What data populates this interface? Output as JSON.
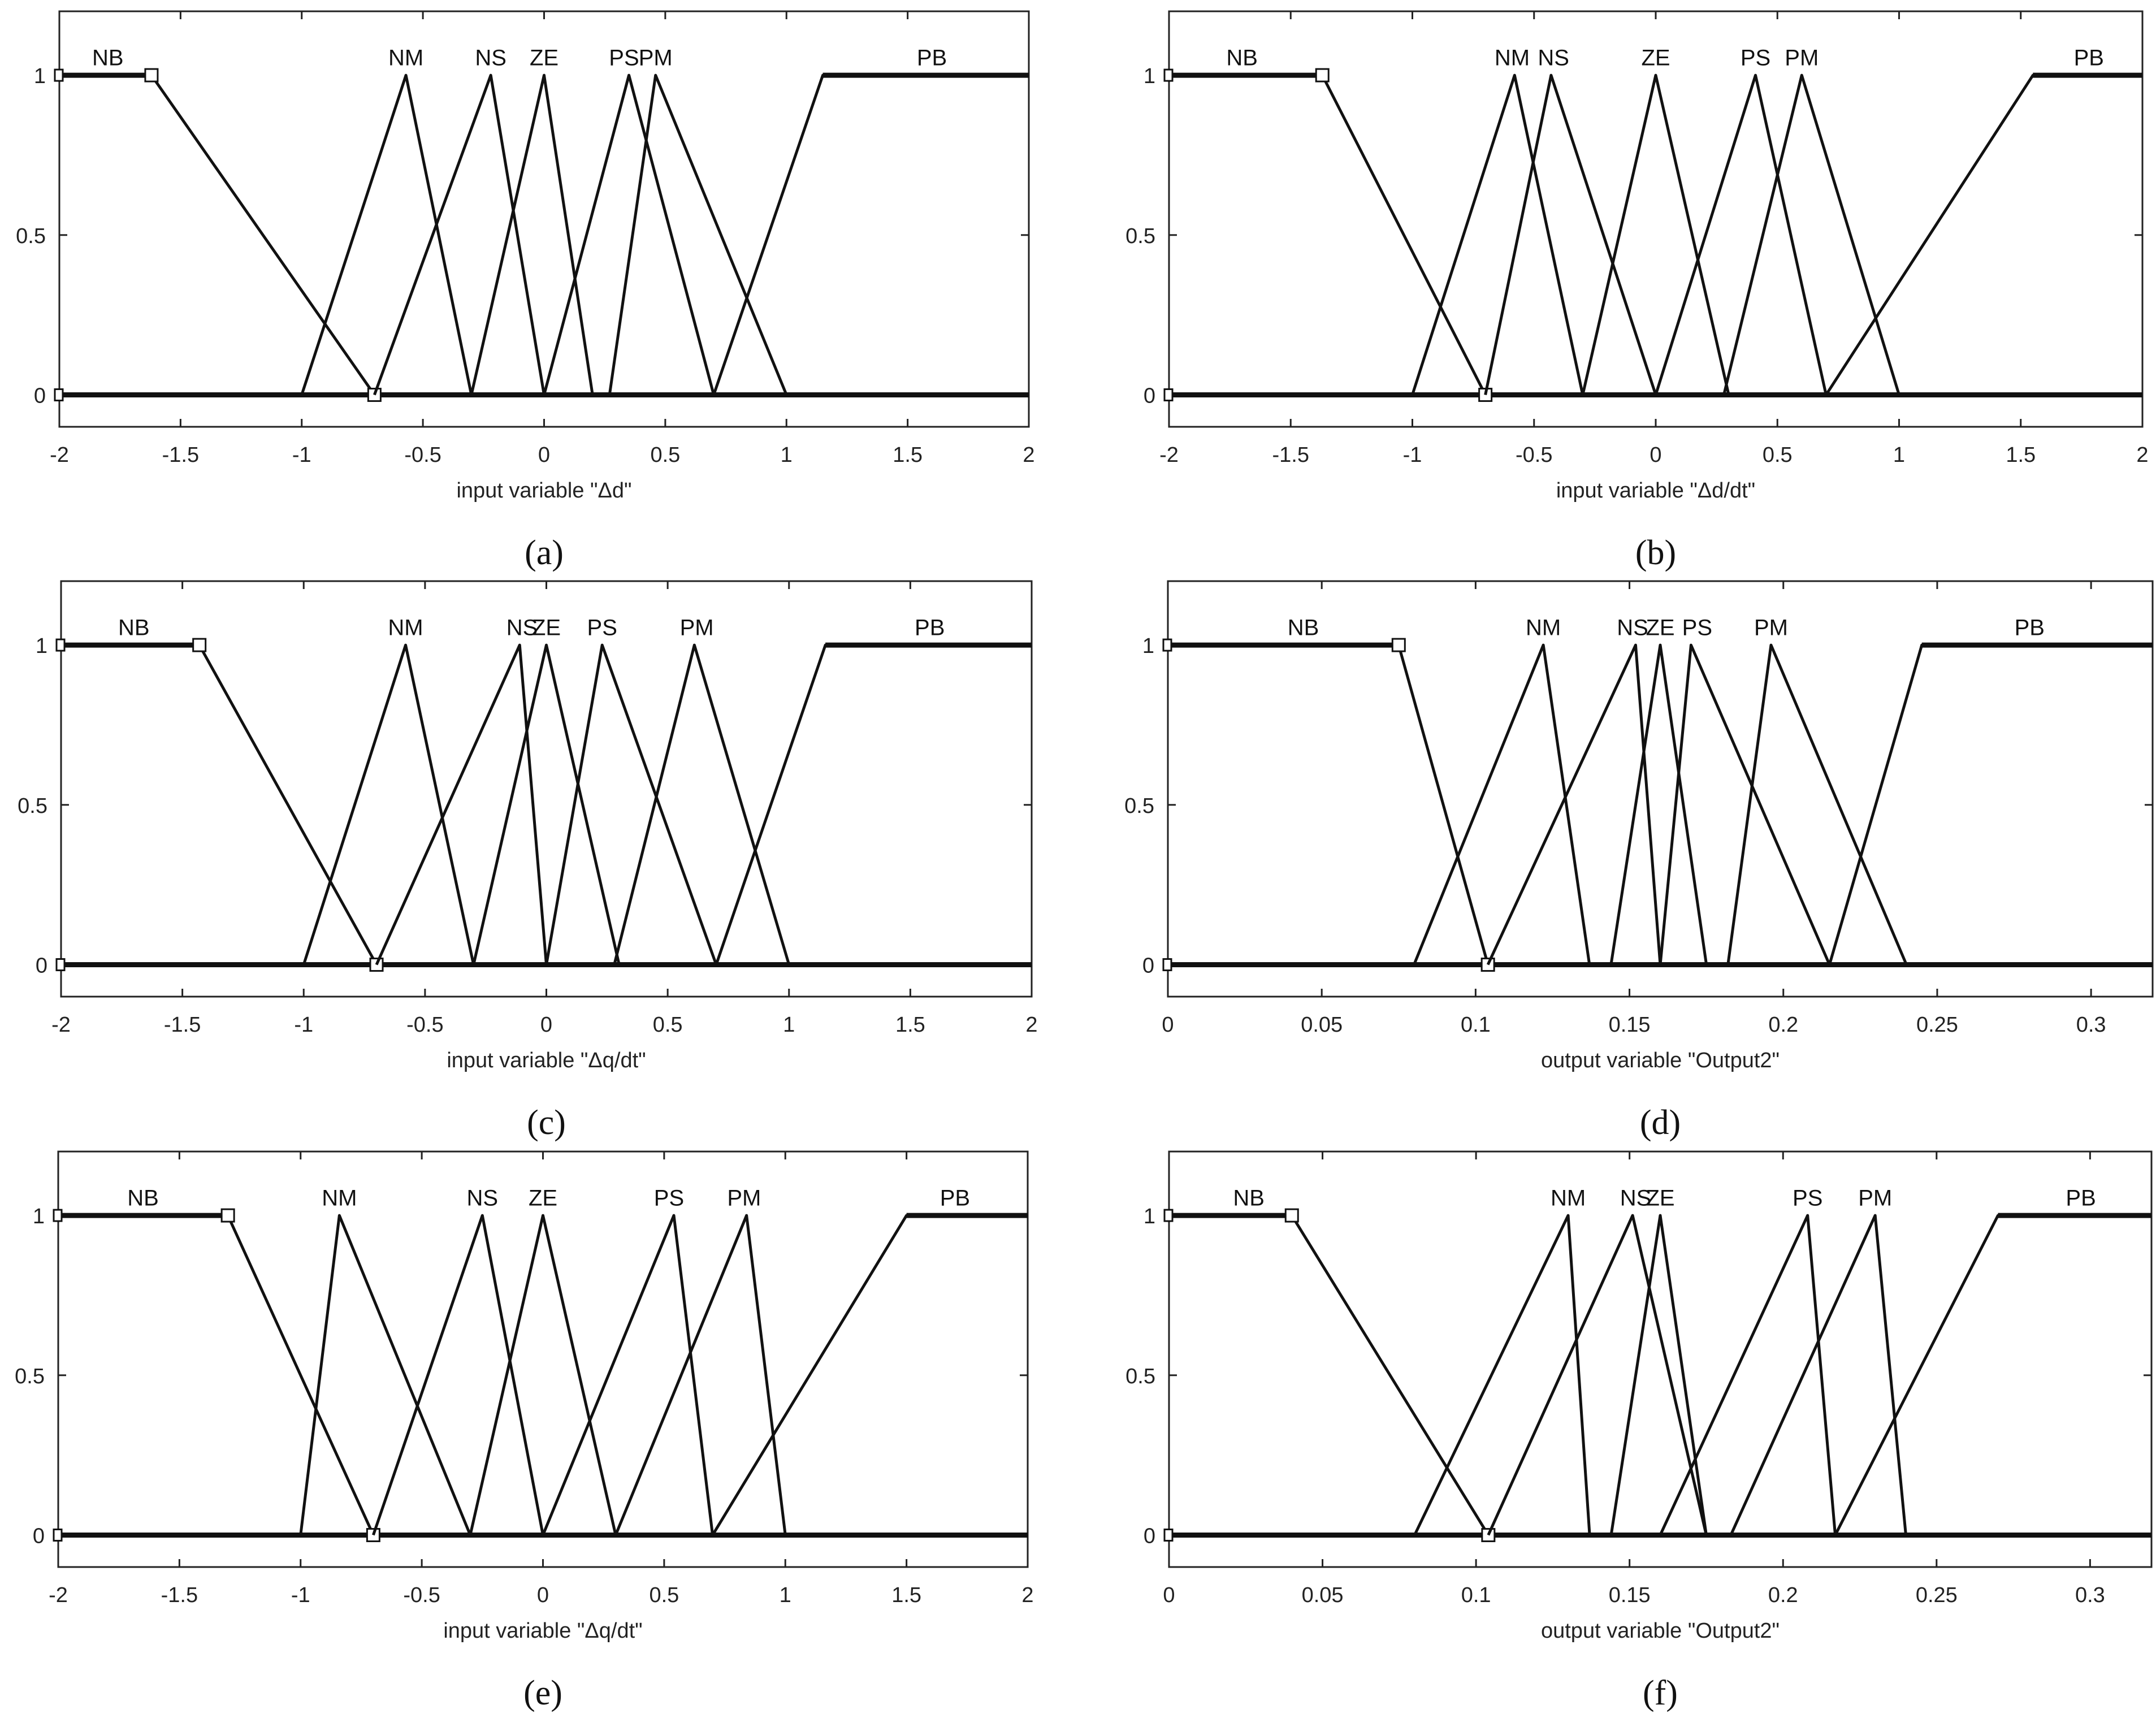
{
  "chart_data": [
    {
      "type": "line",
      "caption": "(a)",
      "xlabel": "input variable \"Δd\"",
      "xlim": [
        -2,
        2
      ],
      "ylim": [
        -0.1,
        1.2
      ],
      "xticks": [
        "-2",
        "-1.5",
        "-1",
        "-0.5",
        "0",
        "0.5",
        "1",
        "1.5",
        "2"
      ],
      "xtick_values": [
        -2,
        -1.5,
        -1,
        -0.5,
        0,
        0.5,
        1,
        1.5,
        2
      ],
      "yticks": [
        "0",
        "0.5",
        "1"
      ],
      "ytick_values": [
        0,
        0.5,
        1
      ],
      "series": [
        {
          "name": "NB",
          "x": [
            -2,
            -1.62,
            -0.7
          ],
          "y": [
            1,
            1,
            0
          ],
          "label_x": -1.8,
          "selected": true
        },
        {
          "name": "NM",
          "x": [
            -1,
            -0.57,
            -0.3
          ],
          "y": [
            0,
            1,
            0
          ],
          "label_x": -0.57
        },
        {
          "name": "NS",
          "x": [
            -0.7,
            -0.22,
            0
          ],
          "y": [
            0,
            1,
            0
          ],
          "label_x": -0.22
        },
        {
          "name": "ZE",
          "x": [
            -0.3,
            0,
            0.2
          ],
          "y": [
            0,
            1,
            0
          ],
          "label_x": 0
        },
        {
          "name": "PS",
          "x": [
            0,
            0.35,
            0.7
          ],
          "y": [
            0,
            1,
            0
          ],
          "label_x": 0.33
        },
        {
          "name": "PM",
          "x": [
            0.27,
            0.46,
            1
          ],
          "y": [
            0,
            1,
            0
          ],
          "label_x": 0.46
        },
        {
          "name": "PB",
          "x": [
            0.7,
            1.15,
            2
          ],
          "y": [
            0,
            1,
            1
          ],
          "label_x": 1.6
        }
      ]
    },
    {
      "type": "line",
      "caption": "(b)",
      "xlabel": "input variable \"Δd/dt\"",
      "xlim": [
        -2,
        2
      ],
      "ylim": [
        -0.1,
        1.2
      ],
      "xticks": [
        "-2",
        "-1.5",
        "-1",
        "-0.5",
        "0",
        "0.5",
        "1",
        "1.5",
        "2"
      ],
      "xtick_values": [
        -2,
        -1.5,
        -1,
        -0.5,
        0,
        0.5,
        1,
        1.5,
        2
      ],
      "yticks": [
        "0",
        "0.5",
        "1"
      ],
      "ytick_values": [
        0,
        0.5,
        1
      ],
      "series": [
        {
          "name": "NB",
          "x": [
            -2,
            -1.37,
            -0.7
          ],
          "y": [
            1,
            1,
            0
          ],
          "label_x": -1.7,
          "selected": true
        },
        {
          "name": "NM",
          "x": [
            -1,
            -0.58,
            -0.3
          ],
          "y": [
            0,
            1,
            0
          ],
          "label_x": -0.59
        },
        {
          "name": "NS",
          "x": [
            -0.7,
            -0.43,
            0
          ],
          "y": [
            0,
            1,
            0
          ],
          "label_x": -0.42
        },
        {
          "name": "ZE",
          "x": [
            -0.3,
            0,
            0.3
          ],
          "y": [
            0,
            1,
            0
          ],
          "label_x": 0
        },
        {
          "name": "PS",
          "x": [
            0,
            0.41,
            0.7
          ],
          "y": [
            0,
            1,
            0
          ],
          "label_x": 0.41
        },
        {
          "name": "PM",
          "x": [
            0.28,
            0.6,
            1
          ],
          "y": [
            0,
            1,
            0
          ],
          "label_x": 0.6
        },
        {
          "name": "PB",
          "x": [
            0.7,
            1.55,
            2
          ],
          "y": [
            0,
            1,
            1
          ],
          "label_x": 1.78
        }
      ]
    },
    {
      "type": "line",
      "caption": "(c)",
      "xlabel": "input variable \"Δq/dt\"",
      "xlim": [
        -2,
        2
      ],
      "ylim": [
        -0.1,
        1.2
      ],
      "xticks": [
        "-2",
        "-1.5",
        "-1",
        "-0.5",
        "0",
        "0.5",
        "1",
        "1.5",
        "2"
      ],
      "xtick_values": [
        -2,
        -1.5,
        -1,
        -0.5,
        0,
        0.5,
        1,
        1.5,
        2
      ],
      "yticks": [
        "0",
        "0.5",
        "1"
      ],
      "ytick_values": [
        0,
        0.5,
        1
      ],
      "series": [
        {
          "name": "NB",
          "x": [
            -2,
            -1.43,
            -0.7
          ],
          "y": [
            1,
            1,
            0
          ],
          "label_x": -1.7,
          "selected": true
        },
        {
          "name": "NM",
          "x": [
            -1,
            -0.58,
            -0.3
          ],
          "y": [
            0,
            1,
            0
          ],
          "label_x": -0.58
        },
        {
          "name": "NS",
          "x": [
            -0.7,
            -0.11,
            0
          ],
          "y": [
            0,
            1,
            0
          ],
          "label_x": -0.1
        },
        {
          "name": "ZE",
          "x": [
            -0.3,
            0,
            0.3
          ],
          "y": [
            0,
            1,
            0
          ],
          "label_x": 0
        },
        {
          "name": "PS",
          "x": [
            0,
            0.23,
            0.7
          ],
          "y": [
            0,
            1,
            0
          ],
          "label_x": 0.23
        },
        {
          "name": "PM",
          "x": [
            0.28,
            0.61,
            1
          ],
          "y": [
            0,
            1,
            0
          ],
          "label_x": 0.62
        },
        {
          "name": "PB",
          "x": [
            0.7,
            1.15,
            2
          ],
          "y": [
            0,
            1,
            1
          ],
          "label_x": 1.58
        }
      ]
    },
    {
      "type": "line",
      "caption": "(d)",
      "xlabel": "output variable \"Output2\"",
      "xlim": [
        0,
        0.32
      ],
      "ylim": [
        -0.1,
        1.2
      ],
      "xticks": [
        "0",
        "0.05",
        "0.1",
        "0.15",
        "0.2",
        "0.25",
        "0.3"
      ],
      "xtick_values": [
        0,
        0.05,
        0.1,
        0.15,
        0.2,
        0.25,
        0.3
      ],
      "yticks": [
        "0",
        "0.5",
        "1"
      ],
      "ytick_values": [
        0,
        0.5,
        1
      ],
      "series": [
        {
          "name": "NB",
          "x": [
            0,
            0.075,
            0.104
          ],
          "y": [
            1,
            1,
            0
          ],
          "label_x": 0.044,
          "selected": true
        },
        {
          "name": "NM",
          "x": [
            0.08,
            0.122,
            0.137
          ],
          "y": [
            0,
            1,
            0
          ],
          "label_x": 0.122
        },
        {
          "name": "NS",
          "x": [
            0.104,
            0.152,
            0.16
          ],
          "y": [
            0,
            1,
            0
          ],
          "label_x": 0.151
        },
        {
          "name": "ZE",
          "x": [
            0.144,
            0.16,
            0.175
          ],
          "y": [
            0,
            1,
            0
          ],
          "label_x": 0.16
        },
        {
          "name": "PS",
          "x": [
            0.16,
            0.17,
            0.215
          ],
          "y": [
            0,
            1,
            0
          ],
          "label_x": 0.172
        },
        {
          "name": "PM",
          "x": [
            0.182,
            0.196,
            0.24
          ],
          "y": [
            0,
            1,
            0
          ],
          "label_x": 0.196
        },
        {
          "name": "PB",
          "x": [
            0.215,
            0.245,
            0.32
          ],
          "y": [
            0,
            1,
            1
          ],
          "label_x": 0.28
        }
      ]
    },
    {
      "type": "line",
      "caption": "(e)",
      "xlabel": "input variable \"Δq/dt\"",
      "xlim": [
        -2,
        2
      ],
      "ylim": [
        -0.1,
        1.2
      ],
      "xticks": [
        "-2",
        "-1.5",
        "-1",
        "-0.5",
        "0",
        "0.5",
        "1",
        "1.5",
        "2"
      ],
      "xtick_values": [
        -2,
        -1.5,
        -1,
        -0.5,
        0,
        0.5,
        1,
        1.5,
        2
      ],
      "yticks": [
        "0",
        "0.5",
        "1"
      ],
      "ytick_values": [
        0,
        0.5,
        1
      ],
      "series": [
        {
          "name": "NB",
          "x": [
            -2,
            -1.3,
            -0.7
          ],
          "y": [
            1,
            1,
            0
          ],
          "label_x": -1.65,
          "selected": true
        },
        {
          "name": "NM",
          "x": [
            -1,
            -0.84,
            -0.3
          ],
          "y": [
            0,
            1,
            0
          ],
          "label_x": -0.84
        },
        {
          "name": "NS",
          "x": [
            -0.7,
            -0.25,
            0
          ],
          "y": [
            0,
            1,
            0
          ],
          "label_x": -0.25
        },
        {
          "name": "ZE",
          "x": [
            -0.3,
            0,
            0.3
          ],
          "y": [
            0,
            1,
            0
          ],
          "label_x": 0
        },
        {
          "name": "PS",
          "x": [
            0,
            0.54,
            0.7
          ],
          "y": [
            0,
            1,
            0
          ],
          "label_x": 0.52
        },
        {
          "name": "PM",
          "x": [
            0.3,
            0.84,
            1
          ],
          "y": [
            0,
            1,
            0
          ],
          "label_x": 0.83
        },
        {
          "name": "PB",
          "x": [
            0.7,
            1.5,
            2
          ],
          "y": [
            0,
            1,
            1
          ],
          "label_x": 1.7
        }
      ]
    },
    {
      "type": "line",
      "caption": "(f)",
      "xlabel": "output variable \"Output2\"",
      "xlim": [
        0,
        0.32
      ],
      "ylim": [
        -0.1,
        1.2
      ],
      "xticks": [
        "0",
        "0.05",
        "0.1",
        "0.15",
        "0.2",
        "0.25",
        "0.3"
      ],
      "xtick_values": [
        0,
        0.05,
        0.1,
        0.15,
        0.2,
        0.25,
        0.3
      ],
      "yticks": [
        "0",
        "0.5",
        "1"
      ],
      "ytick_values": [
        0,
        0.5,
        1
      ],
      "series": [
        {
          "name": "NB",
          "x": [
            0,
            0.04,
            0.104
          ],
          "y": [
            1,
            1,
            0
          ],
          "label_x": 0.026,
          "selected": true
        },
        {
          "name": "NM",
          "x": [
            0.08,
            0.13,
            0.137
          ],
          "y": [
            0,
            1,
            0
          ],
          "label_x": 0.13
        },
        {
          "name": "NS",
          "x": [
            0.104,
            0.151,
            0.175
          ],
          "y": [
            0,
            1,
            0
          ],
          "label_x": 0.152
        },
        {
          "name": "ZE",
          "x": [
            0.144,
            0.16,
            0.175
          ],
          "y": [
            0,
            1,
            0
          ],
          "label_x": 0.16
        },
        {
          "name": "PS",
          "x": [
            0.16,
            0.208,
            0.217
          ],
          "y": [
            0,
            1,
            0
          ],
          "label_x": 0.208
        },
        {
          "name": "PM",
          "x": [
            0.183,
            0.23,
            0.24
          ],
          "y": [
            0,
            1,
            0
          ],
          "label_x": 0.23
        },
        {
          "name": "PB",
          "x": [
            0.217,
            0.27,
            0.32
          ],
          "y": [
            0,
            1,
            1
          ],
          "label_x": 0.297
        }
      ]
    }
  ]
}
